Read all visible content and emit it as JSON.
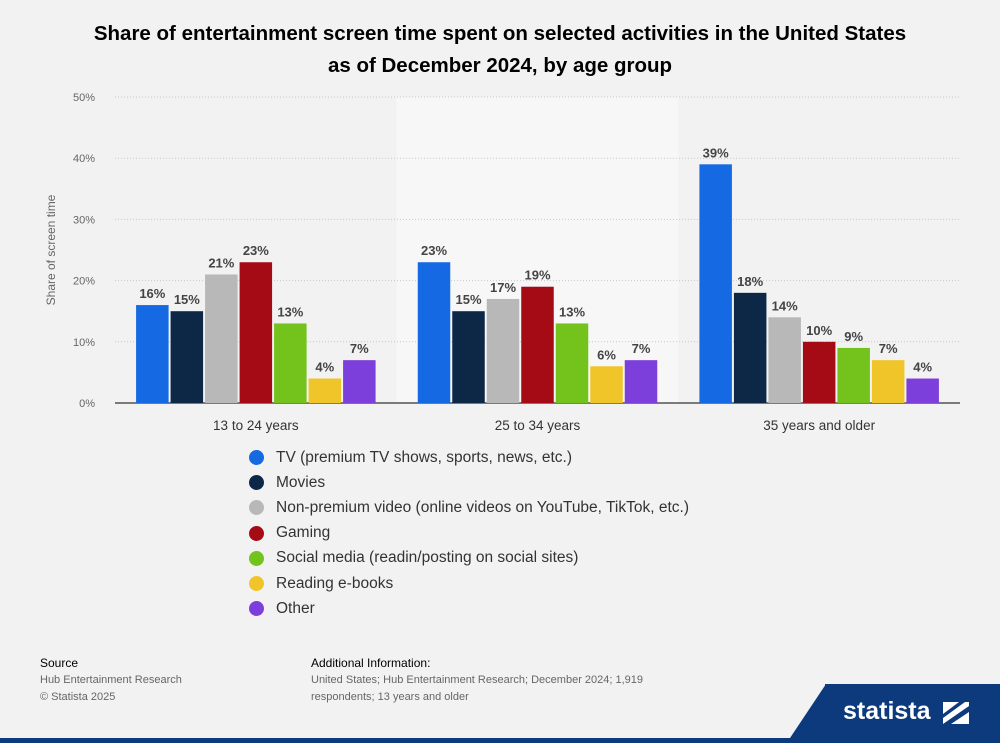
{
  "chart_data": {
    "type": "bar",
    "title": "Share of entertainment screen time spent on selected activities in the United States as of December 2024, by age group",
    "ylabel": "Share of screen time",
    "ylim": [
      0,
      50
    ],
    "yticks": [
      "0%",
      "10%",
      "20%",
      "30%",
      "40%",
      "50%"
    ],
    "grid": true,
    "legend_position": "bottom",
    "categories": [
      "13 to 24 years",
      "25 to 34 years",
      "35 years and older"
    ],
    "series": [
      {
        "name": "TV (premium TV shows, sports, news, etc.)",
        "color": "#1569e2",
        "values": [
          16,
          23,
          39
        ],
        "labels": [
          "16%",
          "23%",
          "39%"
        ]
      },
      {
        "name": "Movies",
        "color": "#0d2846",
        "values": [
          15,
          15,
          18
        ],
        "labels": [
          "15%",
          "15%",
          "18%"
        ]
      },
      {
        "name": "Non-premium video (online videos on YouTube, TikTok, etc.)",
        "color": "#b8b8b8",
        "values": [
          21,
          17,
          14
        ],
        "labels": [
          "21%",
          "17%",
          "14%"
        ]
      },
      {
        "name": "Gaming",
        "color": "#a40b14",
        "values": [
          23,
          19,
          10
        ],
        "labels": [
          "23%",
          "19%",
          "10%"
        ]
      },
      {
        "name": "Social media (readin/posting on social sites)",
        "color": "#74c21c",
        "values": [
          13,
          13,
          9
        ],
        "labels": [
          "13%",
          "13%",
          "9%"
        ]
      },
      {
        "name": "Reading e-books",
        "color": "#f0c52a",
        "values": [
          4,
          6,
          7
        ],
        "labels": [
          "4%",
          "6%",
          "7%"
        ]
      },
      {
        "name": "Other",
        "color": "#7d3fdb",
        "values": [
          7,
          7,
          4
        ],
        "labels": [
          "7%",
          "7%",
          "4%"
        ]
      }
    ]
  },
  "footer": {
    "source_heading": "Source",
    "source_line1": "Hub Entertainment Research",
    "source_line2": "© Statista 2025",
    "info_heading": "Additional Information:",
    "info_line1": "United States; Hub Entertainment Research; December 2024; 1,919",
    "info_line2": "respondents; 13 years and older"
  },
  "brand": {
    "name": "statista"
  }
}
